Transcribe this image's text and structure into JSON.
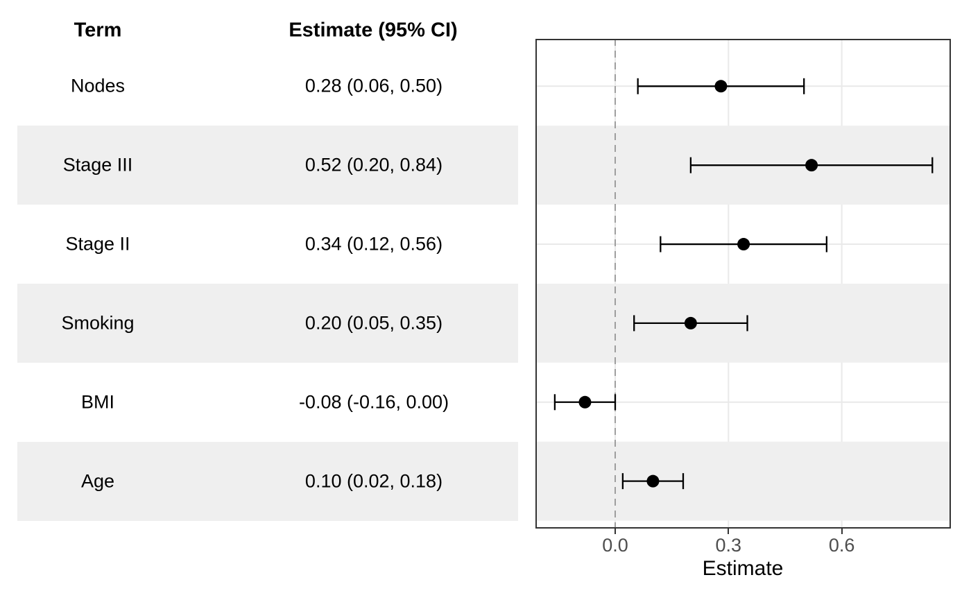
{
  "table": {
    "term_header": "Term",
    "estimate_header": "Estimate (95% CI)",
    "rows": [
      {
        "term": "Nodes",
        "estimate_ci": "0.28 (0.06, 0.50)"
      },
      {
        "term": "Stage III",
        "estimate_ci": "0.52 (0.20, 0.84)"
      },
      {
        "term": "Stage II",
        "estimate_ci": "0.34 (0.12, 0.56)"
      },
      {
        "term": "Smoking",
        "estimate_ci": "0.20 (0.05, 0.35)"
      },
      {
        "term": "BMI",
        "estimate_ci": "-0.08 (-0.16, 0.00)"
      },
      {
        "term": "Age",
        "estimate_ci": "0.10 (0.02, 0.18)"
      }
    ]
  },
  "chart_data": {
    "type": "scatter",
    "subtype": "forest-plot",
    "title": "",
    "categories": [
      "Nodes",
      "Stage III",
      "Stage II",
      "Smoking",
      "BMI",
      "Age"
    ],
    "series": [
      {
        "name": "estimate",
        "values": [
          0.28,
          0.52,
          0.34,
          0.2,
          -0.08,
          0.1
        ]
      },
      {
        "name": "ci_lower",
        "values": [
          0.06,
          0.2,
          0.12,
          0.05,
          -0.16,
          0.02
        ]
      },
      {
        "name": "ci_upper",
        "values": [
          0.5,
          0.84,
          0.56,
          0.35,
          0.0,
          0.18
        ]
      }
    ],
    "xlabel": "Estimate",
    "ylabel": "",
    "x_ticks": [
      0.0,
      0.3,
      0.6
    ],
    "x_tick_labels": [
      "0.0",
      "0.3",
      "0.6"
    ],
    "xlim": [
      -0.21,
      0.89
    ],
    "reference_line_x": 0,
    "grid": true,
    "legend_position": "none",
    "striped_rows": [
      1,
      3,
      5
    ]
  },
  "colors": {
    "stripe": "#efefef",
    "gridline": "#e9e9e9",
    "panel_border": "#333333",
    "reference_line": "#9e9e9e",
    "data": "#000000",
    "axis_text": "#4d4d4d",
    "text": "#000000"
  }
}
